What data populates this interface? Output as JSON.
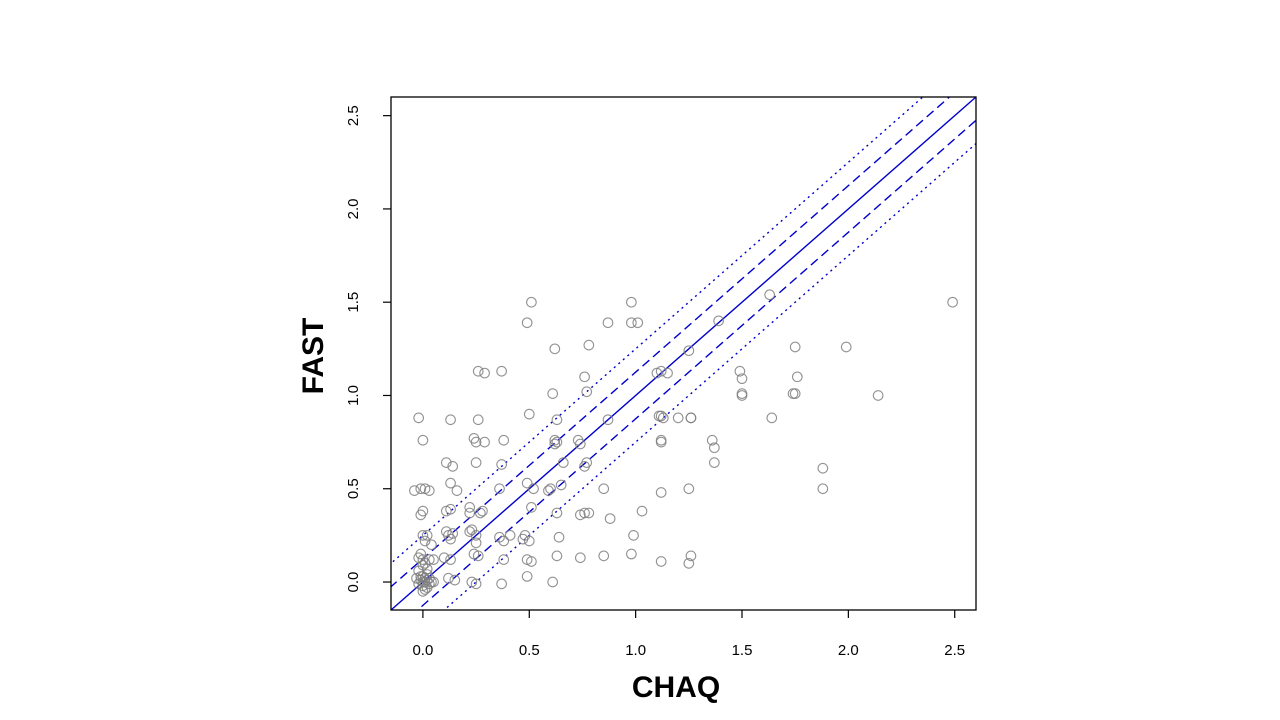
{
  "chart_data": {
    "type": "scatter",
    "xlabel": "CHAQ",
    "ylabel": "FAST",
    "xlim": [
      -0.15,
      2.6
    ],
    "ylim": [
      -0.15,
      2.6
    ],
    "xticks": [
      "0.0",
      "0.5",
      "1.0",
      "1.5",
      "2.0",
      "2.5"
    ],
    "yticks": [
      "0.0",
      "0.5",
      "1.0",
      "1.5",
      "2.0",
      "2.5"
    ],
    "grid": false,
    "legend": "none",
    "point_color": "#7f7f7f",
    "line_color": "#0000cc",
    "reference_lines": [
      {
        "style": "solid",
        "offset": 0.0
      },
      {
        "style": "dashed",
        "offset": 0.125
      },
      {
        "style": "dashed",
        "offset": -0.125
      },
      {
        "style": "dotted",
        "offset": 0.25
      },
      {
        "style": "dotted",
        "offset": -0.25
      }
    ],
    "points": [
      [
        0.0,
        0.0
      ],
      [
        0.01,
        0.0
      ],
      [
        0.02,
        0.01
      ],
      [
        -0.01,
        0.01
      ],
      [
        0.0,
        -0.02
      ],
      [
        0.02,
        -0.03
      ],
      [
        0.0,
        -0.05
      ],
      [
        0.03,
        -0.01
      ],
      [
        0.01,
        0.02
      ],
      [
        -0.02,
        -0.01
      ],
      [
        0.0,
        0.03
      ],
      [
        0.03,
        0.02
      ],
      [
        0.01,
        -0.04
      ],
      [
        0.04,
        0.0
      ],
      [
        -0.01,
        0.03
      ],
      [
        0.02,
        0.04
      ],
      [
        0.0,
        0.12
      ],
      [
        -0.02,
        0.13
      ],
      [
        0.03,
        0.12
      ],
      [
        0.01,
        0.1
      ],
      [
        0.05,
        0.12
      ],
      [
        -0.01,
        0.15
      ],
      [
        -0.03,
        0.02
      ],
      [
        0.02,
        0.07
      ],
      [
        0.05,
        0.0
      ],
      [
        -0.02,
        0.06
      ],
      [
        0.0,
        0.09
      ],
      [
        0.0,
        0.25
      ],
      [
        0.02,
        0.25
      ],
      [
        -0.01,
        0.36
      ],
      [
        0.0,
        0.38
      ],
      [
        -0.01,
        0.5
      ],
      [
        0.01,
        0.5
      ],
      [
        0.03,
        0.49
      ],
      [
        -0.04,
        0.49
      ],
      [
        0.0,
        0.76
      ],
      [
        -0.02,
        0.88
      ],
      [
        0.01,
        0.22
      ],
      [
        0.04,
        0.2
      ],
      [
        0.11,
        0.64
      ],
      [
        0.14,
        0.62
      ],
      [
        0.13,
        0.87
      ],
      [
        0.13,
        0.53
      ],
      [
        0.16,
        0.49
      ],
      [
        0.11,
        0.38
      ],
      [
        0.13,
        0.39
      ],
      [
        0.12,
        0.25
      ],
      [
        0.14,
        0.26
      ],
      [
        0.13,
        0.23
      ],
      [
        0.1,
        0.13
      ],
      [
        0.13,
        0.12
      ],
      [
        0.12,
        0.02
      ],
      [
        0.15,
        0.01
      ],
      [
        0.11,
        0.27
      ],
      [
        0.22,
        0.37
      ],
      [
        0.22,
        0.4
      ],
      [
        0.23,
        0.28
      ],
      [
        0.25,
        0.25
      ],
      [
        0.27,
        0.37
      ],
      [
        0.24,
        0.77
      ],
      [
        0.25,
        0.75
      ],
      [
        0.26,
        1.13
      ],
      [
        0.29,
        1.12
      ],
      [
        0.26,
        0.87
      ],
      [
        0.25,
        0.64
      ],
      [
        0.29,
        0.75
      ],
      [
        0.25,
        0.21
      ],
      [
        0.24,
        0.15
      ],
      [
        0.23,
        0.0
      ],
      [
        0.25,
        -0.01
      ],
      [
        0.26,
        0.14
      ],
      [
        0.28,
        0.38
      ],
      [
        0.22,
        0.27
      ],
      [
        0.36,
        0.5
      ],
      [
        0.37,
        0.63
      ],
      [
        0.38,
        0.76
      ],
      [
        0.37,
        1.13
      ],
      [
        0.36,
        0.24
      ],
      [
        0.38,
        0.22
      ],
      [
        0.41,
        0.25
      ],
      [
        0.37,
        -0.01
      ],
      [
        0.38,
        0.12
      ],
      [
        0.49,
        1.39
      ],
      [
        0.51,
        1.5
      ],
      [
        0.5,
        0.9
      ],
      [
        0.49,
        0.53
      ],
      [
        0.51,
        0.4
      ],
      [
        0.48,
        0.25
      ],
      [
        0.5,
        0.22
      ],
      [
        0.49,
        0.12
      ],
      [
        0.51,
        0.11
      ],
      [
        0.49,
        0.03
      ],
      [
        0.47,
        0.23
      ],
      [
        0.52,
        0.5
      ],
      [
        0.61,
        1.01
      ],
      [
        0.62,
        1.25
      ],
      [
        0.62,
        0.76
      ],
      [
        0.63,
        0.75
      ],
      [
        0.62,
        0.74
      ],
      [
        0.6,
        0.5
      ],
      [
        0.59,
        0.49
      ],
      [
        0.63,
        0.37
      ],
      [
        0.64,
        0.24
      ],
      [
        0.63,
        0.14
      ],
      [
        0.61,
        0.0
      ],
      [
        0.63,
        0.87
      ],
      [
        0.66,
        0.64
      ],
      [
        0.65,
        0.52
      ],
      [
        0.73,
        0.76
      ],
      [
        0.74,
        0.74
      ],
      [
        0.76,
        1.1
      ],
      [
        0.77,
        1.02
      ],
      [
        0.78,
        1.27
      ],
      [
        0.76,
        0.62
      ],
      [
        0.77,
        0.64
      ],
      [
        0.76,
        0.37
      ],
      [
        0.78,
        0.37
      ],
      [
        0.74,
        0.36
      ],
      [
        0.74,
        0.13
      ],
      [
        0.87,
        1.39
      ],
      [
        0.87,
        0.87
      ],
      [
        0.85,
        0.5
      ],
      [
        0.88,
        0.34
      ],
      [
        0.85,
        0.14
      ],
      [
        0.98,
        1.5
      ],
      [
        0.98,
        1.39
      ],
      [
        1.01,
        1.39
      ],
      [
        0.99,
        0.25
      ],
      [
        0.98,
        0.15
      ],
      [
        1.03,
        0.38
      ],
      [
        1.1,
        1.12
      ],
      [
        1.12,
        1.13
      ],
      [
        1.15,
        1.12
      ],
      [
        1.11,
        0.89
      ],
      [
        1.12,
        0.89
      ],
      [
        1.13,
        0.88
      ],
      [
        1.12,
        0.76
      ],
      [
        1.12,
        0.75
      ],
      [
        1.12,
        0.48
      ],
      [
        1.12,
        0.11
      ],
      [
        1.2,
        0.88
      ],
      [
        1.25,
        1.24
      ],
      [
        1.26,
        0.88
      ],
      [
        1.26,
        0.88
      ],
      [
        1.25,
        0.5
      ],
      [
        1.26,
        0.14
      ],
      [
        1.25,
        0.1
      ],
      [
        1.36,
        0.76
      ],
      [
        1.37,
        0.72
      ],
      [
        1.37,
        0.64
      ],
      [
        1.39,
        1.4
      ],
      [
        1.49,
        1.13
      ],
      [
        1.5,
        1.09
      ],
      [
        1.5,
        1.01
      ],
      [
        1.5,
        1.0
      ],
      [
        1.63,
        1.54
      ],
      [
        1.64,
        0.88
      ],
      [
        1.74,
        1.01
      ],
      [
        1.75,
        1.01
      ],
      [
        1.75,
        1.26
      ],
      [
        1.76,
        1.1
      ],
      [
        1.88,
        0.5
      ],
      [
        1.88,
        0.61
      ],
      [
        1.99,
        1.26
      ],
      [
        2.14,
        1.0
      ],
      [
        2.49,
        1.5
      ]
    ]
  }
}
